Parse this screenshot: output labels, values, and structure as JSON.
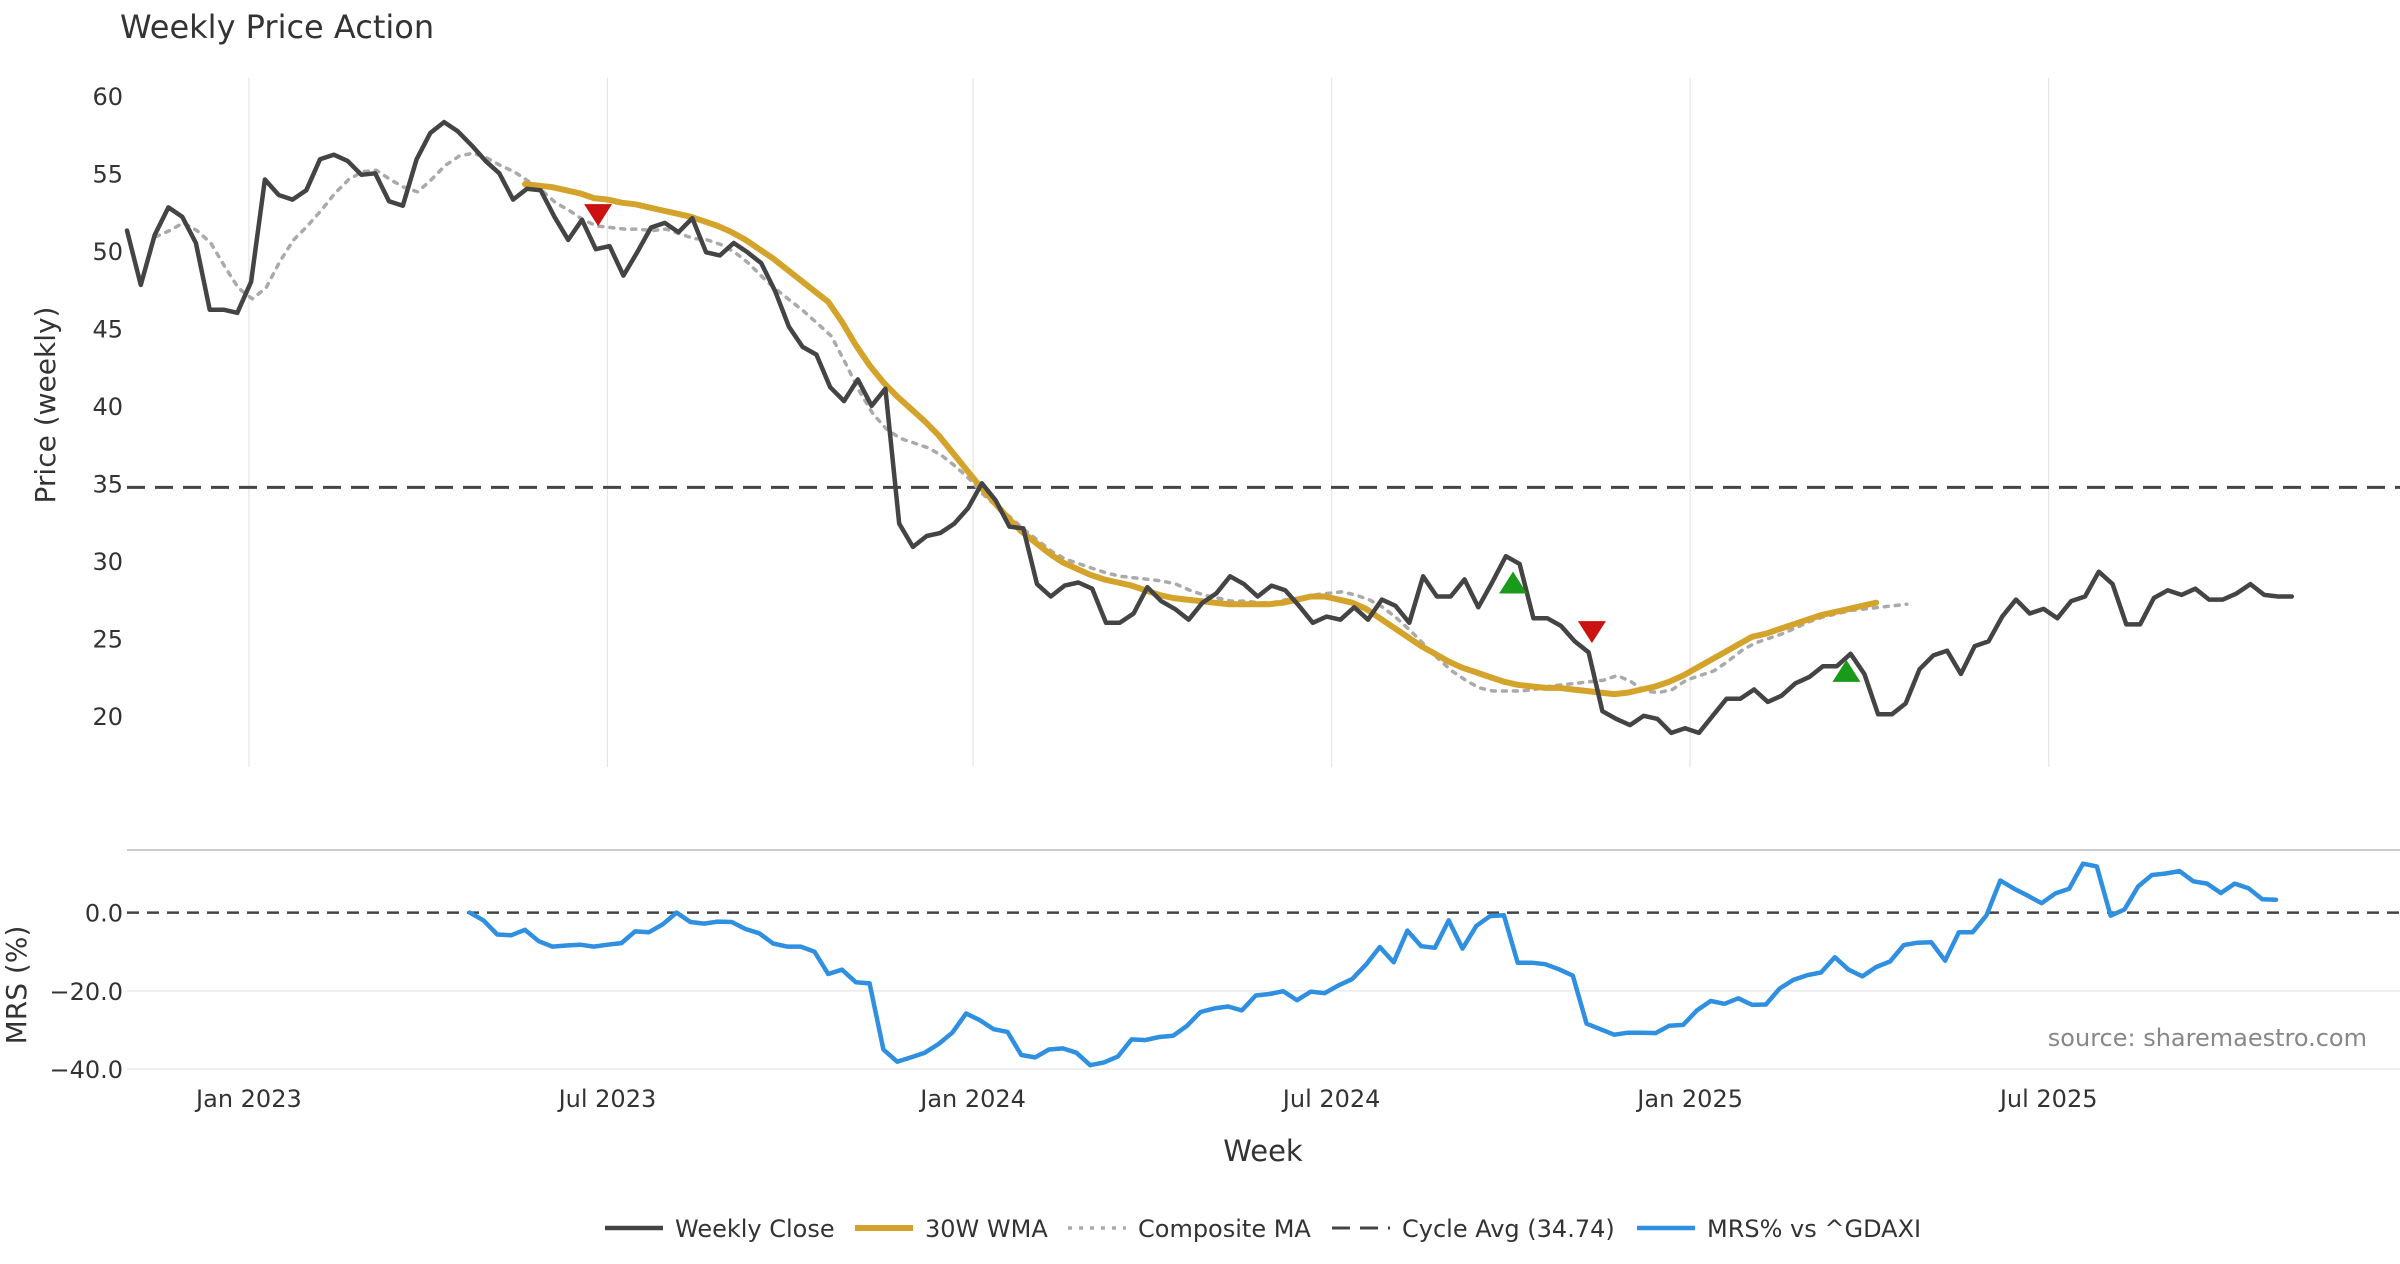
{
  "chart_data": {
    "type": "line",
    "title": "Weekly Price Action",
    "xlabel": "Week",
    "source_note": "source: sharemaestro.com",
    "colors": {
      "close": "#444444",
      "wma": "#d4a32b",
      "composite": "#aaaaaa",
      "cycle": "#444444",
      "mrs": "#2f8fe0",
      "buy": "#1a9a1a",
      "sell": "#cc1111",
      "grid": "#e6e6e6",
      "text": "#333333"
    },
    "x_range": [
      2022.79,
      2025.96
    ],
    "x_ticks": [
      {
        "label": "Jan 2023",
        "value": 2022.96
      },
      {
        "label": "Jul 2023",
        "value": 2023.46
      },
      {
        "label": "Jan 2024",
        "value": 2023.97
      },
      {
        "label": "Jul 2024",
        "value": 2024.47
      },
      {
        "label": "Jan 2025",
        "value": 2024.97
      },
      {
        "label": "Jul 2025",
        "value": 2025.47
      }
    ],
    "price_panel": {
      "ylabel": "Price (weekly)",
      "ylim": [
        16.7,
        60.5
      ],
      "y_ticks": [
        20,
        25,
        30,
        35,
        40,
        45,
        50,
        55,
        60
      ],
      "cycle_avg": 34.74,
      "weekly_close": {
        "start": 2022.79,
        "step": 0.01923,
        "values": [
          51.3,
          47.8,
          51.0,
          52.8,
          52.2,
          50.5,
          46.2,
          46.2,
          46.0,
          48.0,
          54.6,
          53.6,
          53.3,
          53.9,
          55.9,
          56.2,
          55.8,
          54.9,
          55.0,
          53.2,
          52.9,
          55.9,
          57.6,
          58.3,
          57.7,
          56.8,
          55.8,
          55.0,
          53.3,
          54.0,
          53.9,
          52.2,
          50.7,
          52.0,
          50.1,
          50.3,
          48.4,
          49.9,
          51.5,
          51.8,
          51.2,
          52.1,
          49.9,
          49.7,
          50.5,
          49.9,
          49.2,
          47.4,
          45.1,
          43.8,
          43.3,
          41.2,
          40.3,
          41.7,
          40.0,
          41.1,
          32.4,
          30.9,
          31.6,
          31.8,
          32.4,
          33.4,
          35.0,
          33.9,
          32.2,
          32.1,
          28.5,
          27.7,
          28.4,
          28.6,
          28.2,
          26.0,
          26.0,
          26.6,
          28.3,
          27.4,
          26.9,
          26.2,
          27.3,
          27.9,
          29.0,
          28.5,
          27.7,
          28.4,
          28.1,
          27.1,
          26.0,
          26.4,
          26.2,
          27.0,
          26.2,
          27.5,
          27.1,
          26.0,
          29.0,
          27.7,
          27.7,
          28.8,
          27.0,
          28.6,
          30.3,
          29.8,
          26.3,
          26.3,
          25.8,
          24.8,
          24.1,
          20.3,
          19.8,
          19.4,
          20.0,
          19.8,
          18.9,
          19.2,
          18.9,
          20.0,
          21.1,
          21.1,
          21.7,
          20.9,
          21.3,
          22.1,
          22.5,
          23.2,
          23.2,
          24.0,
          22.7,
          20.1,
          20.1,
          20.8,
          23.0,
          23.9,
          24.2,
          22.7,
          24.5,
          24.8,
          26.4,
          27.5,
          26.6,
          26.9,
          26.3,
          27.4,
          27.7,
          29.3,
          28.5,
          25.9,
          25.9,
          27.6,
          28.1,
          27.8,
          28.2,
          27.5,
          27.5,
          27.9,
          28.5,
          27.8,
          27.7,
          27.7
        ]
      },
      "wma_30w": {
        "start": 2023.345,
        "step": 0.01923,
        "values": [
          54.3,
          54.2,
          54.1,
          53.9,
          53.7,
          53.4,
          53.3,
          53.1,
          53.0,
          52.8,
          52.6,
          52.4,
          52.2,
          51.9,
          51.6,
          51.2,
          50.7,
          50.1,
          49.5,
          48.8,
          48.1,
          47.4,
          46.7,
          45.4,
          43.9,
          42.6,
          41.5,
          40.6,
          39.8,
          39.0,
          38.1,
          37.0,
          35.9,
          34.8,
          33.8,
          32.8,
          31.9,
          31.2,
          30.5,
          29.9,
          29.5,
          29.1,
          28.8,
          28.6,
          28.4,
          28.1,
          27.8,
          27.6,
          27.5,
          27.4,
          27.3,
          27.2,
          27.2,
          27.2,
          27.2,
          27.3,
          27.5,
          27.7,
          27.7,
          27.5,
          27.3,
          26.9,
          26.3,
          25.7,
          25.1,
          24.5,
          24.0,
          23.5,
          23.1,
          22.8,
          22.5,
          22.2,
          22.0,
          21.9,
          21.8,
          21.8,
          21.7,
          21.6,
          21.5,
          21.4,
          21.5,
          21.7,
          21.9,
          22.2,
          22.6,
          23.1,
          23.6,
          24.1,
          24.6,
          25.1,
          25.3,
          25.6,
          25.9,
          26.2,
          26.5,
          26.7,
          26.9,
          27.1,
          27.3
        ]
      },
      "composite_ma": {
        "start": 2022.83,
        "step": 0.01923,
        "values": [
          50.9,
          51.3,
          51.8,
          51.3,
          50.5,
          49.0,
          47.6,
          46.9,
          47.6,
          49.3,
          50.7,
          51.6,
          52.6,
          53.7,
          54.6,
          55.1,
          55.2,
          54.6,
          54.1,
          53.8,
          54.6,
          55.5,
          56.1,
          56.3,
          56.0,
          55.5,
          55.1,
          54.5,
          53.9,
          53.1,
          52.6,
          52.0,
          51.6,
          51.5,
          51.4,
          51.4,
          51.3,
          51.4,
          51.1,
          50.8,
          50.7,
          50.4,
          49.9,
          49.2,
          48.3,
          47.5,
          46.8,
          46.1,
          45.3,
          44.5,
          42.8,
          41.0,
          39.5,
          38.5,
          37.9,
          37.6,
          37.3,
          36.8,
          36.1,
          35.3,
          34.3,
          33.5,
          32.8,
          32.0,
          31.3,
          30.6,
          30.1,
          29.8,
          29.5,
          29.2,
          29.0,
          28.9,
          28.8,
          28.7,
          28.5,
          28.1,
          27.8,
          27.6,
          27.4,
          27.4,
          27.3,
          27.3,
          27.5,
          27.6,
          27.8,
          27.9,
          28.0,
          27.8,
          27.5,
          27.0,
          26.3,
          25.5,
          24.6,
          23.7,
          22.9,
          22.3,
          21.8,
          21.6,
          21.6,
          21.6,
          21.7,
          21.9,
          22.0,
          22.1,
          22.2,
          22.3,
          22.6,
          22.2,
          21.6,
          21.5,
          21.7,
          22.3,
          22.6,
          22.9,
          23.5,
          24.2,
          24.7,
          25.0,
          25.3,
          25.7,
          26.1,
          26.4,
          26.6,
          26.8,
          26.9,
          27.0,
          27.1,
          27.2
        ]
      },
      "sell_signals": [
        {
          "x": 2023.447,
          "y": 52.3
        },
        {
          "x": 2024.833,
          "y": 25.4
        }
      ],
      "buy_signals": [
        {
          "x": 2024.723,
          "y": 28.6
        },
        {
          "x": 2025.188,
          "y": 22.9
        }
      ]
    },
    "mrs_panel": {
      "ylabel": "MRS (%)",
      "ylim": [
        -41,
        16
      ],
      "y_ticks": [
        {
          "label": "0.0",
          "value": 0
        },
        {
          "label": "−20.0",
          "value": -20
        },
        {
          "label": "−40.0",
          "value": -40
        }
      ],
      "zero_line": 0,
      "mrs": {
        "start": 2023.268,
        "step": 0.01923,
        "values": [
          0.0,
          -2.0,
          -5.6,
          -5.8,
          -4.4,
          -7.3,
          -8.7,
          -8.4,
          -8.2,
          -8.7,
          -8.2,
          -7.8,
          -4.8,
          -5.0,
          -3.0,
          0.0,
          -2.4,
          -2.8,
          -2.3,
          -2.4,
          -4.2,
          -5.3,
          -7.9,
          -8.7,
          -8.7,
          -10.0,
          -15.7,
          -14.6,
          -17.8,
          -18.1,
          -35.0,
          -38.1,
          -37.0,
          -35.8,
          -33.6,
          -30.7,
          -25.8,
          -27.5,
          -29.8,
          -30.5,
          -36.4,
          -37.0,
          -35.0,
          -34.7,
          -35.8,
          -39.0,
          -38.3,
          -36.8,
          -32.4,
          -32.6,
          -31.8,
          -31.5,
          -29.0,
          -25.4,
          -24.5,
          -24.0,
          -25.0,
          -21.2,
          -20.8,
          -20.1,
          -22.4,
          -20.2,
          -20.6,
          -18.6,
          -17.0,
          -13.3,
          -8.8,
          -12.7,
          -4.6,
          -8.6,
          -9.0,
          -2.0,
          -9.2,
          -3.4,
          -0.9,
          -0.7,
          -12.8,
          -12.8,
          -13.2,
          -14.5,
          -16.1,
          -28.4,
          -29.8,
          -31.2,
          -30.7,
          -30.7,
          -30.8,
          -28.9,
          -28.7,
          -25.0,
          -22.6,
          -23.3,
          -21.9,
          -23.6,
          -23.5,
          -19.4,
          -17.2,
          -16.0,
          -15.3,
          -11.4,
          -14.6,
          -16.3,
          -13.9,
          -12.5,
          -8.3,
          -7.7,
          -7.6,
          -12.3,
          -5.0,
          -5.0,
          -0.7,
          8.2,
          6.1,
          4.3,
          2.4,
          4.9,
          6.1,
          12.5,
          11.8,
          -0.8,
          0.8,
          6.7,
          9.6,
          10.0,
          10.6,
          8.0,
          7.4,
          5.0,
          7.4,
          6.2,
          3.4,
          3.3
        ]
      }
    },
    "legend": [
      {
        "label": "Weekly Close",
        "style": "solid",
        "color": "#444444"
      },
      {
        "label": "30W WMA",
        "style": "solid-thick",
        "color": "#d4a32b"
      },
      {
        "label": "Composite MA",
        "style": "dotted",
        "color": "#aaaaaa"
      },
      {
        "label": "Cycle Avg (34.74)",
        "style": "dashed",
        "color": "#444444"
      },
      {
        "label": "MRS% vs ^GDAXI",
        "style": "solid",
        "color": "#2f8fe0"
      }
    ]
  }
}
